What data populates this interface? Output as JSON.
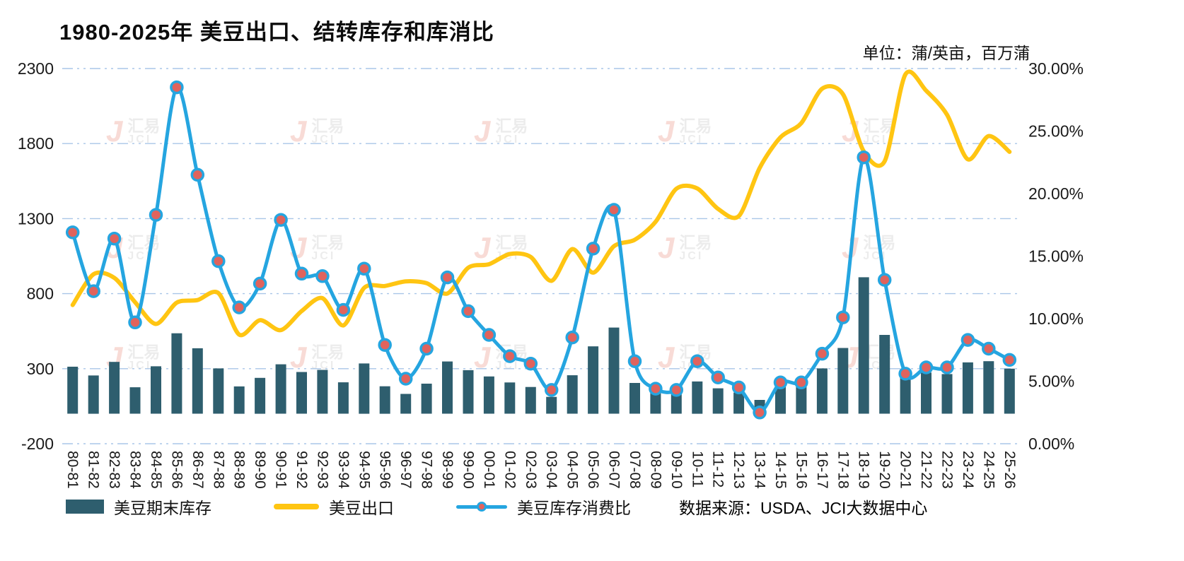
{
  "header": {
    "title": "1980-2025年 美豆出口、结转库存和库消比",
    "unit_label": "单位：蒲/英亩，百万蒲"
  },
  "legend": {
    "items": [
      {
        "label": "美豆期末库存",
        "type": "bar",
        "color": "#2e5e6e"
      },
      {
        "label": "美豆出口",
        "type": "line",
        "color": "#ffc512"
      },
      {
        "label": "美豆库存消费比",
        "type": "line-marker",
        "color": "#25a5e0",
        "marker_fill": "#e0635d"
      }
    ],
    "source_text": "数据来源：USDA、JCI大数据中心"
  },
  "watermark": {
    "logo": "J",
    "text_top": "汇易",
    "text_bottom": "JCI"
  },
  "chart_data": {
    "type": "combo",
    "title": "1980-2025年 美豆出口、结转库存和库消比",
    "categories": [
      "80-81",
      "81-82",
      "82-83",
      "83-84",
      "84-85",
      "85-86",
      "86-87",
      "87-88",
      "88-89",
      "89-90",
      "90-91",
      "91-92",
      "92-93",
      "93-94",
      "94-95",
      "95-96",
      "96-97",
      "97-98",
      "98-99",
      "99-00",
      "00-01",
      "01-02",
      "02-03",
      "03-04",
      "04-05",
      "05-06",
      "06-07",
      "07-08",
      "08-09",
      "09-10",
      "10-11",
      "11-12",
      "12-13",
      "13-14",
      "14-15",
      "15-16",
      "16-17",
      "17-18",
      "18-19",
      "19-20",
      "20-21",
      "21-22",
      "22-23",
      "23-24",
      "24-25",
      "25-26"
    ],
    "series": [
      {
        "name": "美豆期末库存",
        "type": "bar",
        "axis": "left",
        "unit": "百万蒲",
        "color": "#2e5e6e",
        "values": [
          313,
          255,
          345,
          176,
          316,
          536,
          436,
          302,
          182,
          239,
          329,
          278,
          292,
          209,
          335,
          183,
          132,
          200,
          348,
          290,
          248,
          208,
          178,
          112,
          256,
          449,
          574,
          205,
          138,
          151,
          215,
          169,
          141,
          92,
          191,
          197,
          302,
          438,
          909,
          525,
          257,
          274,
          264,
          342,
          350,
          300
        ]
      },
      {
        "name": "美豆出口",
        "type": "line",
        "axis": "left",
        "unit": "百万蒲",
        "color": "#ffc512",
        "values": [
          724,
          929,
          905,
          743,
          598,
          740,
          757,
          804,
          527,
          623,
          557,
          684,
          770,
          588,
          838,
          851,
          882,
          870,
          801,
          973,
          996,
          1064,
          1045,
          885,
          1097,
          940,
          1116,
          1159,
          1279,
          1499,
          1501,
          1365,
          1317,
          1638,
          1842,
          1936,
          2166,
          2129,
          1748,
          1682,
          2261,
          2152,
          1992,
          1695,
          1850,
          1745
        ]
      },
      {
        "name": "美豆库存消费比",
        "type": "line",
        "axis": "right",
        "unit": "%",
        "color": "#25a5e0",
        "marker_fill": "#e0635d",
        "values": [
          16.9,
          12.2,
          16.4,
          9.7,
          18.3,
          28.5,
          21.5,
          14.6,
          10.9,
          12.8,
          17.9,
          13.6,
          13.4,
          10.7,
          14.0,
          7.9,
          5.2,
          7.6,
          13.3,
          10.6,
          8.7,
          7.0,
          6.4,
          4.3,
          8.5,
          15.6,
          18.7,
          6.6,
          4.4,
          4.3,
          6.6,
          5.3,
          4.5,
          2.5,
          4.9,
          4.9,
          7.2,
          10.1,
          22.9,
          13.1,
          5.6,
          6.1,
          6.1,
          8.3,
          7.6,
          6.7
        ]
      }
    ],
    "left_axis": {
      "min": -200,
      "max": 2300,
      "ticks": [
        2300,
        1800,
        1300,
        800,
        300,
        -200
      ],
      "tick_labels": [
        "2300",
        "1800",
        "1300",
        "800",
        "300",
        "-200"
      ]
    },
    "right_axis": {
      "min": 0,
      "max": 30,
      "tick_labels": [
        "30.00%",
        "25.00%",
        "20.00%",
        "15.00%",
        "10.00%",
        "5.00%",
        "0.00%"
      ]
    },
    "grid": {
      "color": "#a9c6e8",
      "style": "dash-dot"
    },
    "legend_position": "bottom"
  }
}
